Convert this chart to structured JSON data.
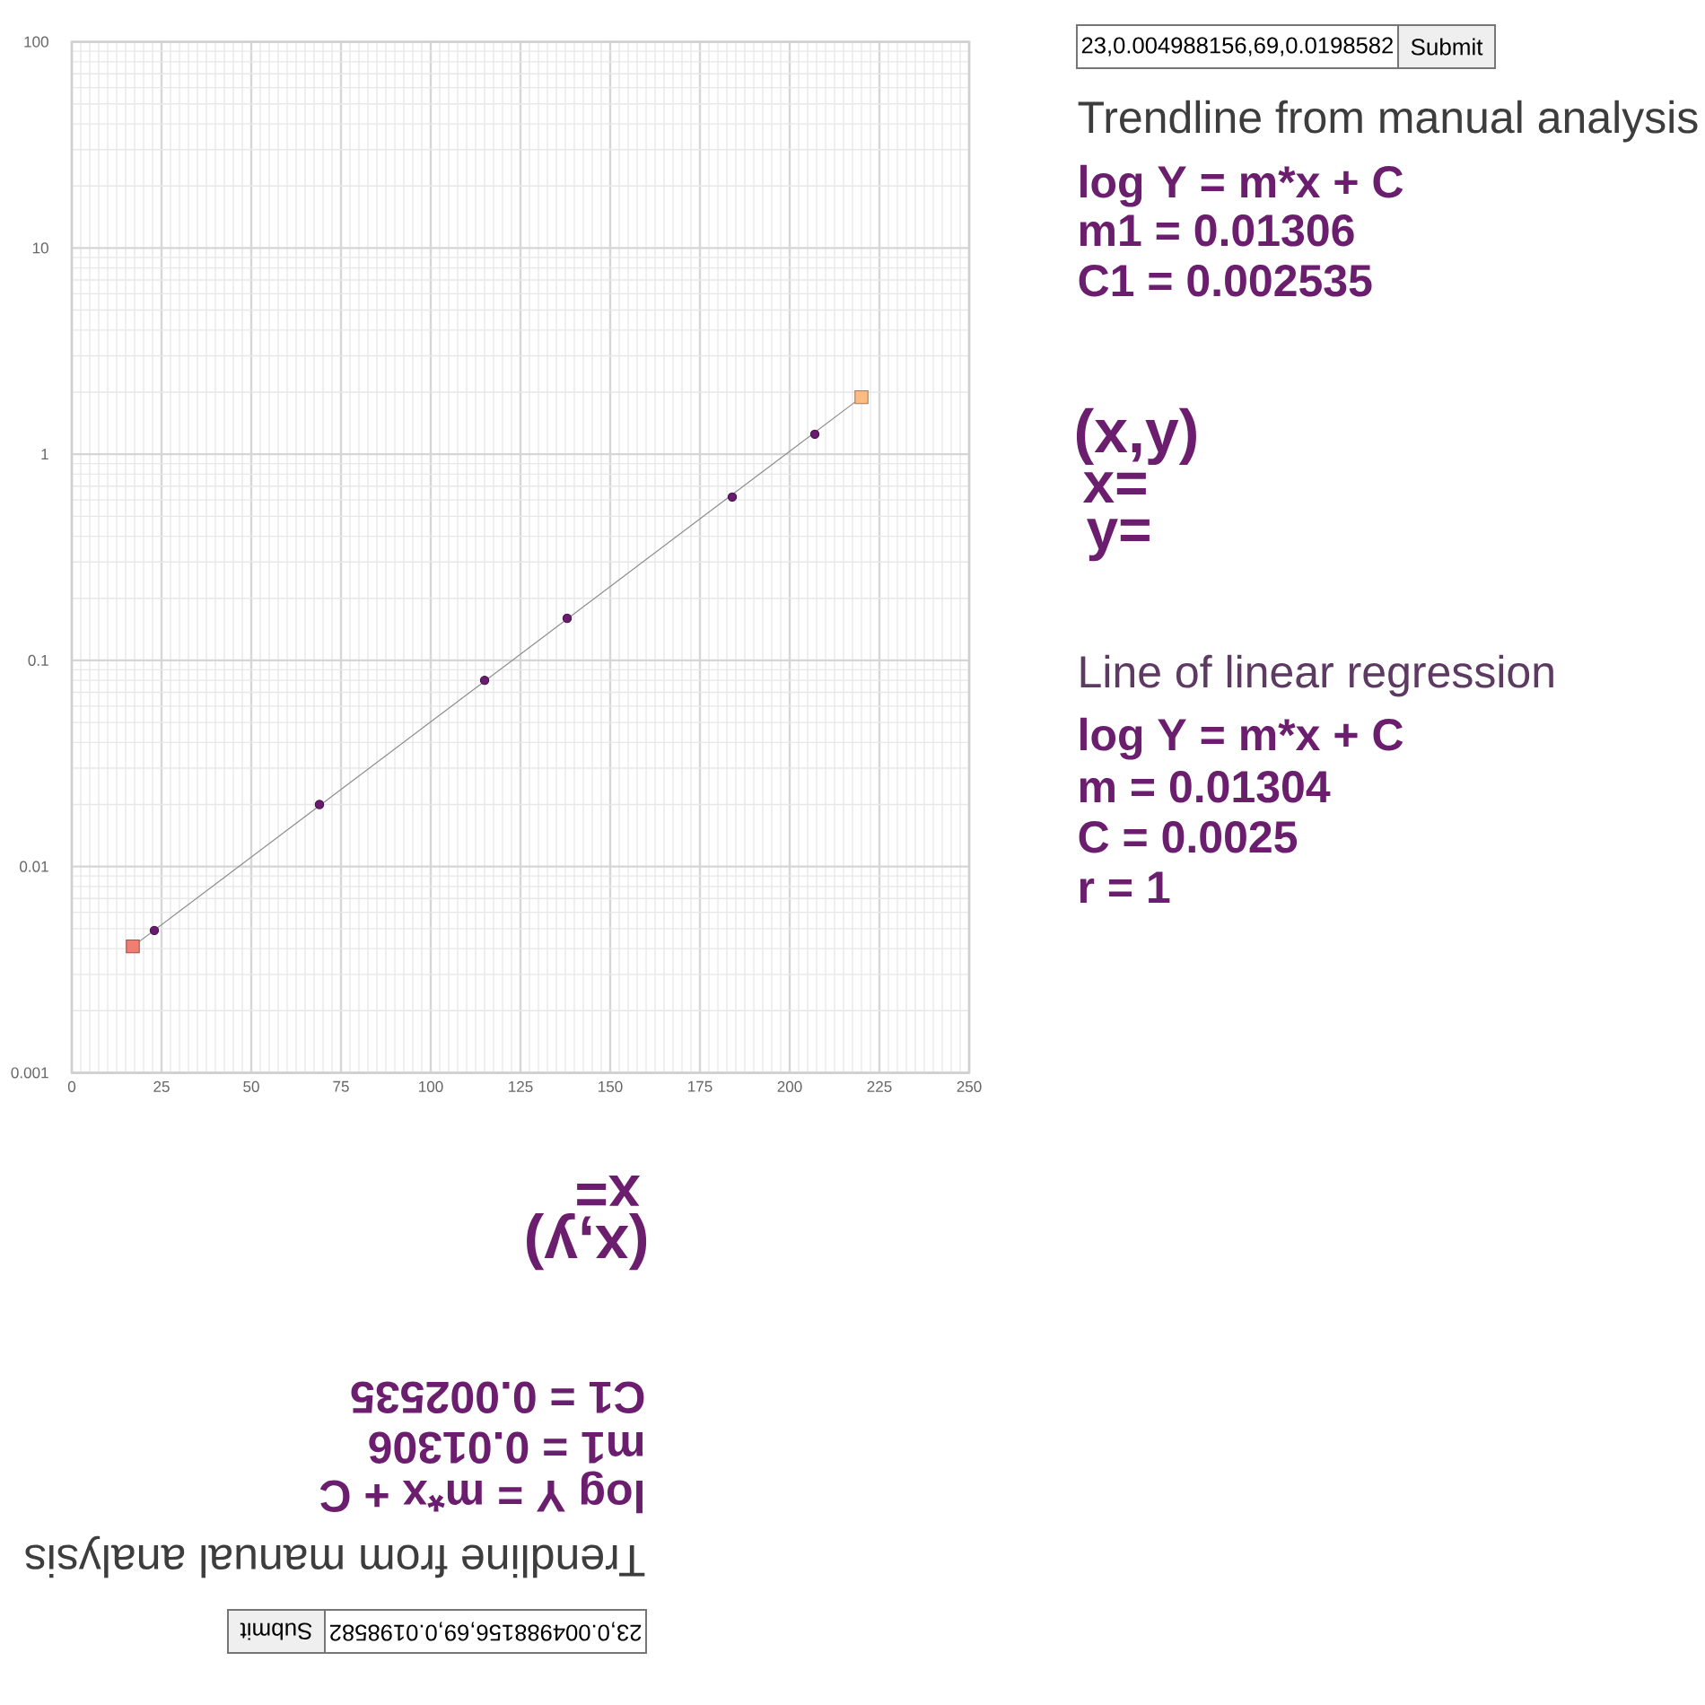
{
  "chart_data": [
    {
      "type": "scatter",
      "xlim": [
        0,
        250
      ],
      "xticks": [
        0,
        25,
        50,
        75,
        100,
        125,
        150,
        175,
        200,
        225,
        250
      ],
      "ylim": [
        0.001,
        100
      ],
      "yticks": [
        0.001,
        0.01,
        0.1,
        1,
        10,
        100
      ],
      "log": "y",
      "grid": true,
      "series": [
        {
          "type": "line",
          "x": [
            17,
            220
          ],
          "values": [
            0.0041,
            1.89
          ],
          "color": "#8c8c8c",
          "marker": "none"
        },
        {
          "x": [
            17,
            220
          ],
          "values": [
            0.0041,
            1.89
          ],
          "colors": [
            "#f07e72",
            "#fdbb84"
          ],
          "marker": "square"
        },
        {
          "x": [
            23,
            69,
            115,
            138,
            184,
            207
          ],
          "values": [
            0.0049,
            0.02,
            0.08,
            0.16,
            0.62,
            1.25
          ],
          "color": "#6a1b6f",
          "marker": "circle"
        }
      ],
      "annotations": [
        "23,0.004988156,69,0.0198582",
        "Submit",
        "Trendline from manual analysis",
        "log Y = m*x + C",
        "m1 = 0.01306",
        "C1 = 0.002535",
        "(x,y)",
        "x=",
        "y=",
        "Line of linear regression",
        "log Y = m*x + C",
        "m = 0.01304",
        "C = 0.0025",
        "r = 1"
      ]
    },
    {
      "type": "other",
      "annotations": [
        "23,0.004988156,69,0.0198582",
        "Submit",
        "Trendline from manual analysis",
        "log Y = m*x + C",
        "m1 = 0.01306",
        "C1 = 0.002535",
        "(x,y)",
        "x="
      ]
    }
  ]
}
